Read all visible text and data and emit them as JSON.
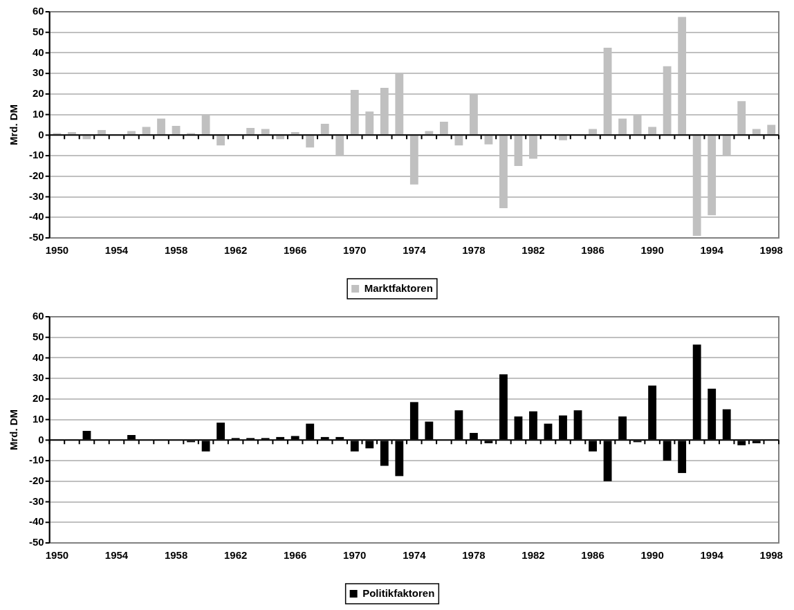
{
  "chart_data": [
    {
      "type": "bar",
      "categories": [
        "1950",
        null,
        null,
        null,
        "1954",
        null,
        null,
        null,
        "1958",
        null,
        null,
        null,
        "1962",
        null,
        null,
        null,
        "1966",
        null,
        null,
        null,
        "1970",
        null,
        null,
        null,
        "1974",
        null,
        null,
        null,
        "1978",
        null,
        null,
        null,
        "1982",
        null,
        null,
        null,
        "1986",
        null,
        null,
        null,
        "1990",
        null,
        null,
        null,
        "1994",
        null,
        null,
        null,
        "1998"
      ],
      "series": [
        {
          "name": "Marktfaktoren",
          "color": "#c0c0c0",
          "values": [
            1,
            1.5,
            -2,
            2.5,
            0.5,
            2,
            4,
            8,
            4.5,
            1,
            10,
            -5,
            0,
            3.5,
            3,
            -2,
            1.5,
            -6,
            5.5,
            -10,
            22,
            11.5,
            23,
            30,
            -24,
            2,
            6.5,
            -5,
            20,
            -4.5,
            -35.5,
            -15,
            -11.5,
            0.5,
            -2.5,
            0,
            3,
            42.5,
            8,
            10,
            4,
            33.5,
            57.5,
            -49,
            -39,
            -10,
            16.5,
            3,
            5
          ]
        }
      ],
      "ylabel": "Mrd. DM",
      "ylim": [
        -50,
        60
      ],
      "yticks": [
        -50,
        -40,
        -30,
        -20,
        -10,
        0,
        10,
        20,
        30,
        40,
        50,
        60
      ],
      "grid": "y",
      "legend": "bottom"
    },
    {
      "type": "bar",
      "categories": [
        "1950",
        null,
        null,
        null,
        "1954",
        null,
        null,
        null,
        "1958",
        null,
        null,
        null,
        "1962",
        null,
        null,
        null,
        "1966",
        null,
        null,
        null,
        "1970",
        null,
        null,
        null,
        "1974",
        null,
        null,
        null,
        "1978",
        null,
        null,
        null,
        "1982",
        null,
        null,
        null,
        "1986",
        null,
        null,
        null,
        "1990",
        null,
        null,
        null,
        "1994",
        null,
        null,
        null,
        "1998"
      ],
      "series": [
        {
          "name": "Politikfaktoren",
          "color": "#000000",
          "values": [
            0,
            0,
            4.5,
            null,
            0,
            2.5,
            null,
            0,
            0,
            -1,
            -5.5,
            8.5,
            1,
            1,
            1,
            1.5,
            2,
            8,
            1.5,
            1.5,
            -5.5,
            -4,
            -12.5,
            -17.5,
            18.5,
            9,
            0,
            14.5,
            3.5,
            -1.5,
            32,
            11.5,
            14,
            8,
            12,
            14.5,
            -5.5,
            -20,
            11.5,
            -1,
            26.5,
            -10,
            -16,
            46.5,
            25,
            15,
            -2.5,
            -1.5,
            0
          ]
        }
      ],
      "ylabel": "Mrd. DM",
      "ylim": [
        -50,
        60
      ],
      "yticks": [
        -50,
        -40,
        -30,
        -20,
        -10,
        0,
        10,
        20,
        30,
        40,
        50,
        60
      ],
      "grid": "y",
      "legend": "bottom"
    }
  ]
}
